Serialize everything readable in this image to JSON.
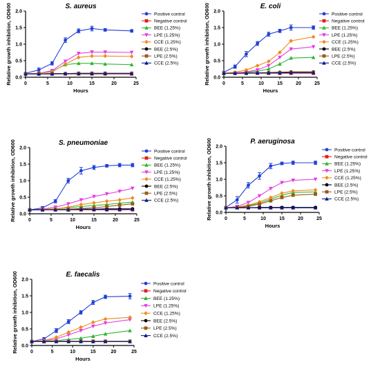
{
  "series_styles": [
    {
      "name": "Positive control",
      "color": "#1f3fd6",
      "marker": "circle"
    },
    {
      "name": "Negative control",
      "color": "#e0201b",
      "marker": "square"
    },
    {
      "name": "BEE (1.25%)",
      "color": "#2db52d",
      "marker": "triangle-up"
    },
    {
      "name": "LPE (1.25%)",
      "color": "#e23ee2",
      "marker": "triangle-down"
    },
    {
      "name": "CCE (1.25%)",
      "color": "#f08a1c",
      "marker": "diamond"
    },
    {
      "name": "BEE (2.5%)",
      "color": "#000000",
      "marker": "circle"
    },
    {
      "name": "LPE (2.5%)",
      "color": "#9a5a1a",
      "marker": "square"
    },
    {
      "name": "CCE (2.5%)",
      "color": "#0a1a8a",
      "marker": "triangle-up"
    }
  ],
  "chart_data": [
    {
      "type": "line",
      "title": "S. aureus",
      "xlabel": "Hours",
      "ylabel": "Relative growth inhibition, OD600",
      "xlim": [
        0,
        25
      ],
      "ylim": [
        0,
        2.0
      ],
      "xticks": [
        0,
        5,
        10,
        15,
        20,
        25
      ],
      "yticks": [
        0.0,
        0.5,
        1.0,
        1.5,
        2.0
      ],
      "ytick_labels": [
        "0.0",
        "0.5",
        "1.0",
        "1.5",
        "2.0"
      ],
      "legend_position": "right",
      "legend": [
        "Positive control",
        "Negative control",
        "BEE (1.25%)",
        "LPE (1.25%)",
        "CCE (1.25%)",
        "BEE (2.5%)",
        "LPE (2.5%)",
        "CCE (2.5%)"
      ],
      "x": [
        0,
        3,
        6,
        9,
        12,
        15,
        18,
        24
      ],
      "series": [
        {
          "name": "Positive control",
          "values": [
            0.12,
            0.22,
            0.42,
            1.12,
            1.4,
            1.47,
            1.43,
            1.4
          ],
          "errors": [
            0.02,
            0.06,
            0.05,
            0.07,
            0.06,
            0.07,
            0.04,
            0.04
          ]
        },
        {
          "name": "Negative control",
          "values": [
            0.1,
            0.1,
            0.1,
            0.1,
            0.1,
            0.1,
            0.1,
            0.1
          ]
        },
        {
          "name": "BEE (1.25%)",
          "values": [
            0.1,
            0.12,
            0.18,
            0.38,
            0.42,
            0.42,
            0.4,
            0.38
          ]
        },
        {
          "name": "LPE (1.25%)",
          "values": [
            0.1,
            0.12,
            0.2,
            0.48,
            0.72,
            0.76,
            0.76,
            0.75
          ]
        },
        {
          "name": "CCE (1.25%)",
          "values": [
            0.1,
            0.12,
            0.16,
            0.4,
            0.6,
            0.64,
            0.64,
            0.63
          ]
        },
        {
          "name": "BEE (2.5%)",
          "values": [
            0.1,
            0.1,
            0.11,
            0.11,
            0.12,
            0.12,
            0.12,
            0.12
          ]
        },
        {
          "name": "LPE (2.5%)",
          "values": [
            0.1,
            0.1,
            0.11,
            0.11,
            0.12,
            0.12,
            0.12,
            0.12
          ]
        },
        {
          "name": "CCE (2.5%)",
          "values": [
            0.1,
            0.1,
            0.1,
            0.11,
            0.11,
            0.11,
            0.11,
            0.11
          ]
        }
      ]
    },
    {
      "type": "line",
      "title": "E. coli",
      "xlabel": "Hours",
      "ylabel": "Relative growth inhibition, OD600",
      "xlim": [
        0,
        25
      ],
      "ylim": [
        0,
        2.0
      ],
      "xticks": [
        0,
        5,
        10,
        15,
        20,
        25
      ],
      "yticks": [
        0.0,
        0.5,
        1.0,
        1.5,
        2.0
      ],
      "ytick_labels": [
        "0.0",
        "0.5",
        "1.0",
        "1.5",
        "2.0"
      ],
      "legend_position": "right",
      "legend": [
        "Positive control",
        "Negative control",
        "BEE (1.25%)",
        "LPE (1.25%)",
        "CCE (1.25%)",
        "BEE (2.5%)",
        "LPE (2.5%)",
        "CCE (2.5%)"
      ],
      "x": [
        0,
        3,
        6,
        9,
        12,
        15,
        18,
        24
      ],
      "series": [
        {
          "name": "Positive control",
          "values": [
            0.15,
            0.32,
            0.7,
            1.02,
            1.3,
            1.4,
            1.5,
            1.5
          ],
          "errors": [
            0.02,
            0.05,
            0.08,
            0.06,
            0.06,
            0.05,
            0.08,
            0.05
          ]
        },
        {
          "name": "Negative control",
          "values": [
            0.12,
            0.12,
            0.12,
            0.12,
            0.12,
            0.12,
            0.12,
            0.12
          ]
        },
        {
          "name": "BEE (1.25%)",
          "values": [
            0.12,
            0.13,
            0.15,
            0.18,
            0.25,
            0.4,
            0.58,
            0.6
          ]
        },
        {
          "name": "LPE (1.25%)",
          "values": [
            0.12,
            0.13,
            0.16,
            0.22,
            0.35,
            0.6,
            0.85,
            0.92
          ]
        },
        {
          "name": "CCE (1.25%)",
          "values": [
            0.12,
            0.15,
            0.22,
            0.35,
            0.48,
            0.75,
            1.1,
            1.22
          ]
        },
        {
          "name": "BEE (2.5%)",
          "values": [
            0.12,
            0.12,
            0.13,
            0.13,
            0.14,
            0.15,
            0.16,
            0.16
          ]
        },
        {
          "name": "LPE (2.5%)",
          "values": [
            0.12,
            0.12,
            0.13,
            0.13,
            0.13,
            0.14,
            0.15,
            0.15
          ]
        },
        {
          "name": "CCE (2.5%)",
          "values": [
            0.12,
            0.12,
            0.12,
            0.13,
            0.13,
            0.13,
            0.14,
            0.14
          ]
        }
      ]
    },
    {
      "type": "line",
      "title": "S. pneumoniae",
      "xlabel": "Hours",
      "ylabel": "Relative growth inhibition, OD600",
      "xlim": [
        0,
        25
      ],
      "ylim": [
        0,
        2.0
      ],
      "xticks": [
        0,
        5,
        10,
        15,
        20,
        25
      ],
      "yticks": [
        0.0,
        0.5,
        1.0,
        1.5,
        2.0
      ],
      "ytick_labels": [
        "0.0",
        "0.5",
        "1.0",
        "1.5",
        "2.0"
      ],
      "legend_position": "right",
      "legend": [
        "Positive control",
        "Negative control",
        "BEE (1.25%)",
        "LPE (1.25%)",
        "CCE (1.25%)",
        "BEE (2.5%)",
        "LPE (2.5%)",
        "CCE (2.5%)"
      ],
      "x": [
        0,
        3,
        6,
        9,
        12,
        15,
        18,
        21,
        24
      ],
      "series": [
        {
          "name": "Positive control",
          "values": [
            0.12,
            0.18,
            0.38,
            1.0,
            1.3,
            1.4,
            1.45,
            1.47,
            1.47
          ],
          "errors": [
            0.02,
            0.04,
            0.05,
            0.07,
            0.1,
            0.06,
            0.04,
            0.05,
            0.05
          ]
        },
        {
          "name": "Negative control",
          "values": [
            0.12,
            0.12,
            0.12,
            0.12,
            0.12,
            0.12,
            0.12,
            0.12,
            0.12
          ]
        },
        {
          "name": "BEE (1.25%)",
          "values": [
            0.12,
            0.13,
            0.15,
            0.18,
            0.22,
            0.25,
            0.28,
            0.32,
            0.35
          ]
        },
        {
          "name": "LPE (1.25%)",
          "values": [
            0.12,
            0.14,
            0.2,
            0.3,
            0.42,
            0.52,
            0.6,
            0.68,
            0.77
          ]
        },
        {
          "name": "CCE (1.25%)",
          "values": [
            0.12,
            0.13,
            0.15,
            0.2,
            0.28,
            0.33,
            0.38,
            0.42,
            0.48
          ]
        },
        {
          "name": "BEE (2.5%)",
          "values": [
            0.12,
            0.12,
            0.13,
            0.13,
            0.14,
            0.14,
            0.15,
            0.15,
            0.15
          ]
        },
        {
          "name": "LPE (2.5%)",
          "values": [
            0.12,
            0.12,
            0.13,
            0.14,
            0.16,
            0.18,
            0.22,
            0.26,
            0.3
          ]
        },
        {
          "name": "CCE (2.5%)",
          "values": [
            0.12,
            0.12,
            0.12,
            0.12,
            0.13,
            0.13,
            0.13,
            0.13,
            0.14
          ]
        }
      ]
    },
    {
      "type": "line",
      "title": "P. aeruginosa",
      "xlabel": "Hours",
      "ylabel": "Relative growth inhibition, OD600",
      "xlim": [
        0,
        25
      ],
      "ylim": [
        0,
        2.0
      ],
      "xticks": [
        0,
        5,
        10,
        15,
        20,
        25
      ],
      "yticks": [
        0.0,
        0.5,
        1.0,
        1.5,
        2.0
      ],
      "ytick_labels": [
        "0.0",
        "0.5",
        "1.0",
        "1.5",
        "2.0"
      ],
      "legend_position": "right",
      "legend": [
        "Positive control",
        "Negative control",
        "BEE (1.25%)",
        "LPE (1.25%)",
        "CCE (1.25%)",
        "BEE (2.5%)",
        "LPE (2.5%)",
        "CCE (2.5%)"
      ],
      "x": [
        0,
        3,
        6,
        9,
        12,
        15,
        18,
        24
      ],
      "series": [
        {
          "name": "Positive control",
          "values": [
            0.15,
            0.38,
            0.82,
            1.1,
            1.4,
            1.48,
            1.5,
            1.5
          ],
          "errors": [
            0.03,
            0.1,
            0.08,
            0.1,
            0.08,
            0.04,
            0.05,
            0.05
          ]
        },
        {
          "name": "Negative control",
          "values": [
            0.14,
            0.14,
            0.14,
            0.14,
            0.14,
            0.14,
            0.14,
            0.14
          ]
        },
        {
          "name": "BEE (1.25%)",
          "values": [
            0.14,
            0.16,
            0.2,
            0.28,
            0.4,
            0.52,
            0.6,
            0.62
          ]
        },
        {
          "name": "LPE (1.25%)",
          "values": [
            0.14,
            0.18,
            0.3,
            0.5,
            0.72,
            0.9,
            0.97,
            1.0
          ]
        },
        {
          "name": "CCE (1.25%)",
          "values": [
            0.14,
            0.16,
            0.22,
            0.32,
            0.45,
            0.58,
            0.65,
            0.68
          ]
        },
        {
          "name": "BEE (2.5%)",
          "values": [
            0.14,
            0.14,
            0.14,
            0.15,
            0.15,
            0.15,
            0.15,
            0.15
          ]
        },
        {
          "name": "LPE (2.5%)",
          "values": [
            0.14,
            0.15,
            0.18,
            0.25,
            0.35,
            0.45,
            0.52,
            0.55
          ]
        },
        {
          "name": "CCE (2.5%)",
          "values": [
            0.14,
            0.14,
            0.14,
            0.14,
            0.14,
            0.14,
            0.14,
            0.14
          ]
        }
      ]
    },
    {
      "type": "line",
      "title": "E. faecalis",
      "xlabel": "Hours",
      "ylabel": "Relative growth inhibition, OD600",
      "xlim": [
        0,
        25
      ],
      "ylim": [
        0,
        2.0
      ],
      "xticks": [
        0,
        5,
        10,
        15,
        20,
        25
      ],
      "yticks": [
        0.0,
        0.5,
        1.0,
        1.5,
        2.0
      ],
      "ytick_labels": [
        "0.0",
        "0.5",
        "1.0",
        "1.5",
        "2.0"
      ],
      "legend_position": "right",
      "legend": [
        "Positive control",
        "Negative control",
        "BEE (1.25%)",
        "LPE (1.25%)",
        "CCE (1.25%)",
        "BEE (2.5%)",
        "LPE (2.5%)",
        "CCE (2.5%)"
      ],
      "x": [
        0,
        3,
        6,
        9,
        12,
        15,
        18,
        24
      ],
      "series": [
        {
          "name": "Positive control",
          "values": [
            0.12,
            0.2,
            0.45,
            0.72,
            1.0,
            1.3,
            1.47,
            1.49
          ],
          "errors": [
            0.02,
            0.04,
            0.06,
            0.06,
            0.05,
            0.06,
            0.05,
            0.08
          ]
        },
        {
          "name": "Negative control",
          "values": [
            0.12,
            0.12,
            0.12,
            0.12,
            0.12,
            0.12,
            0.12,
            0.12
          ]
        },
        {
          "name": "BEE (1.25%)",
          "values": [
            0.12,
            0.13,
            0.15,
            0.18,
            0.22,
            0.28,
            0.35,
            0.45
          ]
        },
        {
          "name": "LPE (1.25%)",
          "values": [
            0.12,
            0.14,
            0.2,
            0.32,
            0.45,
            0.58,
            0.68,
            0.78
          ]
        },
        {
          "name": "CCE (1.25%)",
          "values": [
            0.12,
            0.15,
            0.25,
            0.4,
            0.55,
            0.7,
            0.8,
            0.85
          ]
        },
        {
          "name": "BEE (2.5%)",
          "values": [
            0.12,
            0.12,
            0.12,
            0.12,
            0.12,
            0.12,
            0.12,
            0.12
          ]
        },
        {
          "name": "LPE (2.5%)",
          "values": [
            0.12,
            0.12,
            0.13,
            0.13,
            0.13,
            0.13,
            0.13,
            0.13
          ]
        },
        {
          "name": "CCE (2.5%)",
          "values": [
            0.12,
            0.12,
            0.12,
            0.12,
            0.12,
            0.12,
            0.12,
            0.12
          ]
        }
      ]
    }
  ]
}
